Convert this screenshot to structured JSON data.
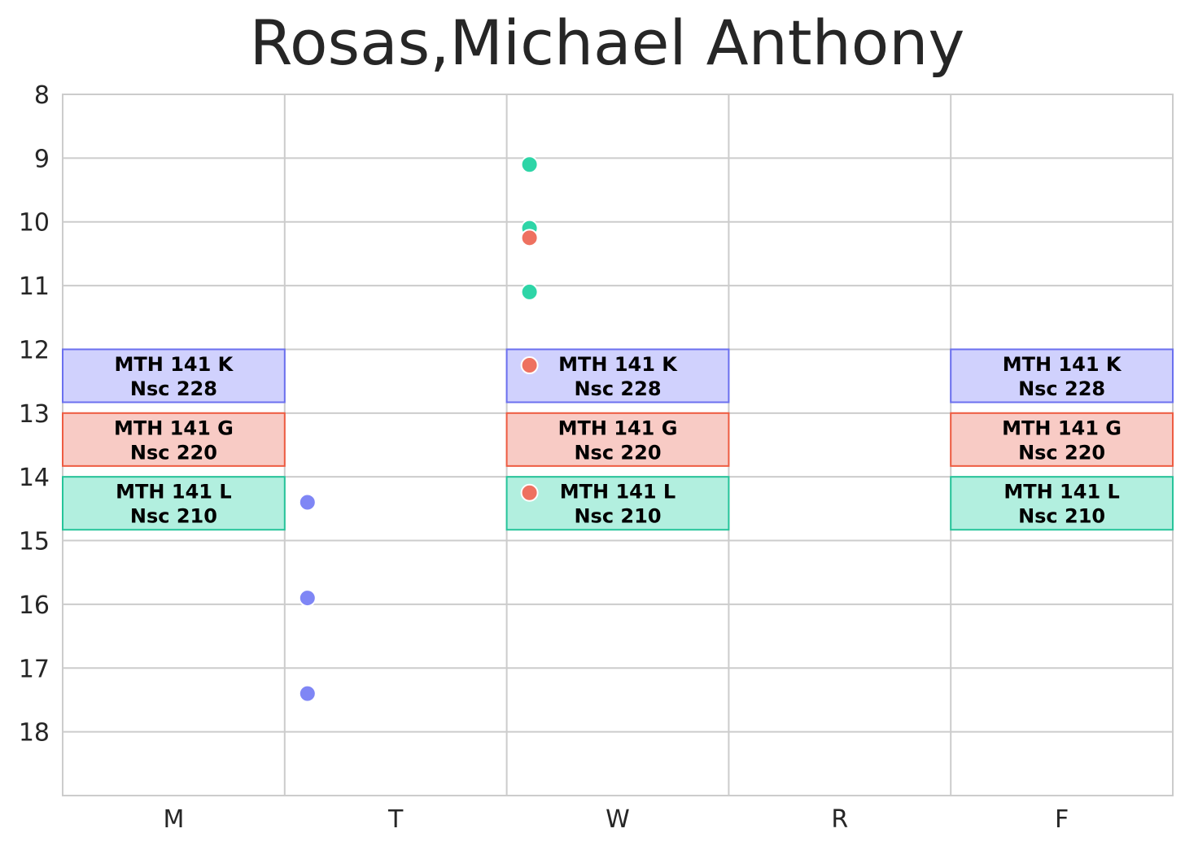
{
  "chart_data": {
    "type": "schedule",
    "title": "Rosas,Michael Anthony",
    "xlabel": "",
    "ylabel": "",
    "x_categories": [
      "M",
      "T",
      "W",
      "R",
      "F"
    ],
    "y_ticks": [
      "8",
      "9",
      "10",
      "11",
      "12",
      "13",
      "14",
      "15",
      "16",
      "17",
      "18"
    ],
    "ylim": [
      8,
      19
    ],
    "y_inverted": true,
    "grid": true,
    "colors": {
      "blue_fill": "#d0d1fd",
      "blue_edge": "#6b70ef",
      "red_fill": "#f8cbc5",
      "red_edge": "#ee5c42",
      "green_fill": "#b2efdf",
      "green_edge": "#26c49a",
      "blue_point": "#7f86f5",
      "red_point": "#ee7160",
      "green_point": "#2ed5a7"
    },
    "blocks": [
      {
        "day": "M",
        "start": 12.0,
        "end": 12.83,
        "course": "MTH 141 K",
        "room": "Nsc 228",
        "color": "blue"
      },
      {
        "day": "M",
        "start": 13.0,
        "end": 13.83,
        "course": "MTH 141 G",
        "room": "Nsc 220",
        "color": "red"
      },
      {
        "day": "M",
        "start": 14.0,
        "end": 14.83,
        "course": "MTH 141 L",
        "room": "Nsc 210",
        "color": "green"
      },
      {
        "day": "W",
        "start": 12.0,
        "end": 12.83,
        "course": "MTH 141 K",
        "room": "Nsc 228",
        "color": "blue"
      },
      {
        "day": "W",
        "start": 13.0,
        "end": 13.83,
        "course": "MTH 141 G",
        "room": "Nsc 220",
        "color": "red"
      },
      {
        "day": "W",
        "start": 14.0,
        "end": 14.83,
        "course": "MTH 141 L",
        "room": "Nsc 210",
        "color": "green"
      },
      {
        "day": "F",
        "start": 12.0,
        "end": 12.83,
        "course": "MTH 141 K",
        "room": "Nsc 228",
        "color": "blue"
      },
      {
        "day": "F",
        "start": 13.0,
        "end": 13.83,
        "course": "MTH 141 G",
        "room": "Nsc 220",
        "color": "red"
      },
      {
        "day": "F",
        "start": 14.0,
        "end": 14.83,
        "course": "MTH 141 L",
        "room": "Nsc 210",
        "color": "green"
      }
    ],
    "points": [
      {
        "day": "T",
        "time": 14.4,
        "color": "blue"
      },
      {
        "day": "T",
        "time": 15.9,
        "color": "blue"
      },
      {
        "day": "T",
        "time": 17.4,
        "color": "blue"
      },
      {
        "day": "W",
        "time": 9.1,
        "color": "green"
      },
      {
        "day": "W",
        "time": 10.1,
        "color": "green"
      },
      {
        "day": "W",
        "time": 11.1,
        "color": "green"
      },
      {
        "day": "W",
        "time": 10.25,
        "color": "red"
      },
      {
        "day": "W",
        "time": 12.25,
        "color": "red"
      },
      {
        "day": "W",
        "time": 14.25,
        "color": "red"
      }
    ]
  }
}
